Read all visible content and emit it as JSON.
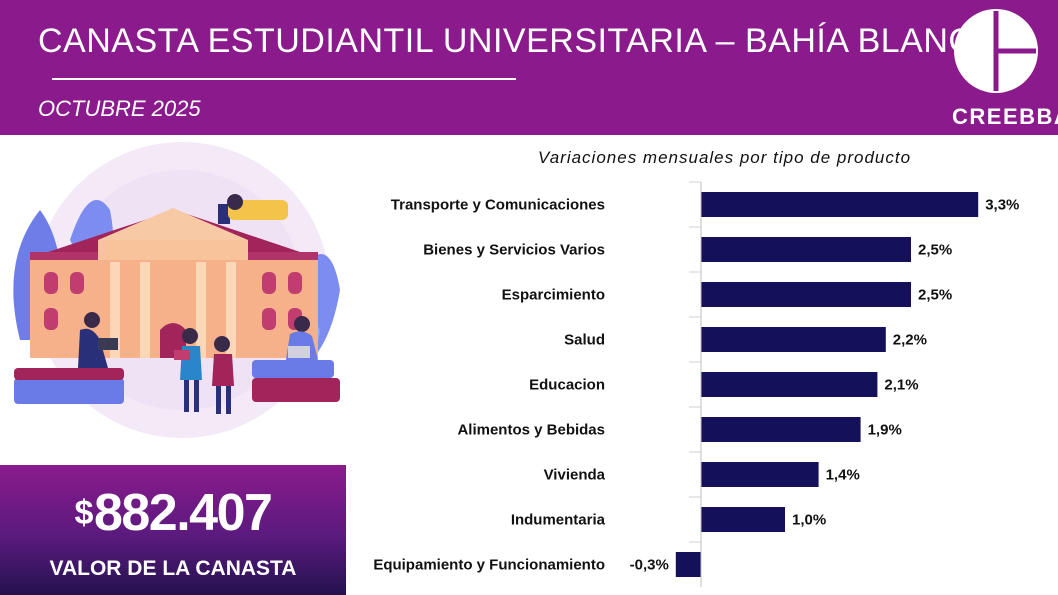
{
  "header": {
    "title": "CANASTA ESTUDIANTIL UNIVERSITARIA – BAHÍA BLANCA",
    "subtitle": "OCTUBRE 2025",
    "logo_text": "CREEBBA"
  },
  "summary": {
    "currency": "$",
    "value": "882.407",
    "label": "VALOR DE LA CANASTA"
  },
  "colors": {
    "brand": "#8b1b8d",
    "bar": "#14105a"
  },
  "chart_data": {
    "type": "bar",
    "orientation": "horizontal",
    "title": "Variaciones mensuales por tipo de producto",
    "categories": [
      "Transporte y Comunicaciones",
      "Bienes y Servicios Varios",
      "Esparcimiento",
      "Salud",
      "Educacion",
      "Alimentos y Bebidas",
      "Vivienda",
      "Indumentaria",
      "Equipamiento y Funcionamiento"
    ],
    "values": [
      3.3,
      2.5,
      2.5,
      2.2,
      2.1,
      1.9,
      1.4,
      1.0,
      -0.3
    ],
    "labels": [
      "3,3%",
      "2,5%",
      "2,5%",
      "2,2%",
      "2,1%",
      "1,9%",
      "1,4%",
      "1,0%",
      "-0,3%"
    ],
    "unit": "%"
  }
}
